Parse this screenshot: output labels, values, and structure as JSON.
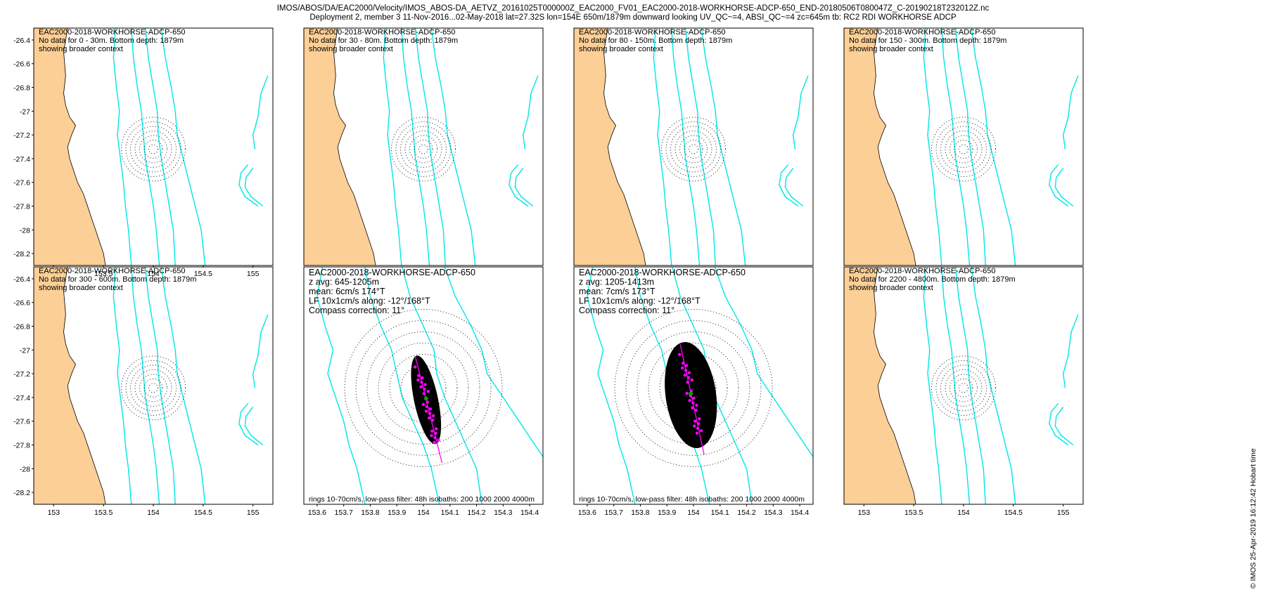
{
  "header": {
    "line1": "IMOS/ABOS/DA/EAC2000/Velocity/IMOS_ABOS-DA_AETVZ_20161025T000000Z_EAC2000_FV01_EAC2000-2018-WORKHORSE-ADCP-650_END-20180506T080047Z_C-20190218T232012Z.nc",
    "line2": "Deployment 2, member 3 11-Nov-2016...02-May-2018 lat=27.32S lon=154E 650m/1879m downward looking UV_QC~=4, ABSI_QC~=4 zc=645m tb: RC2 RDI WORKHORSE ADCP"
  },
  "footer": "© IMOS 25-Apr-2019 16:12:42 Hobart time",
  "colors": {
    "land": "#fccf96",
    "isobath": "#00e6e6",
    "scatter": "#000000",
    "lowpass": "#ff00ff",
    "circles": "#000000"
  },
  "chart_data": [
    {
      "type": "scatter",
      "panel": 1,
      "title": "EAC2000-2018-WORKHORSE-ADCP-650",
      "notes": [
        "No data for 0 - 30m. Bottom depth: 1879m",
        "showing broader context"
      ],
      "xlim": [
        152.8,
        155.2
      ],
      "ylim": [
        -28.3,
        -26.3
      ],
      "xticks": [
        "153",
        "153.5",
        "154",
        "154.5",
        "155"
      ],
      "yticks": [
        "-26.4",
        "-26.6",
        "-26.8",
        "-27",
        "-27.2",
        "-27.4",
        "-27.6",
        "-27.8",
        "-28",
        "-28.2"
      ],
      "has_data": false
    },
    {
      "type": "scatter",
      "panel": 2,
      "title": "EAC2000-2018-WORKHORSE-ADCP-650",
      "notes": [
        "No data for 30 - 80m. Bottom depth: 1879m",
        "showing broader context"
      ],
      "xlim": [
        152.8,
        155.2
      ],
      "ylim": [
        -28.3,
        -26.3
      ],
      "has_data": false
    },
    {
      "type": "scatter",
      "panel": 3,
      "title": "EAC2000-2018-WORKHORSE-ADCP-650",
      "notes": [
        "No data for 80 - 150m. Bottom depth: 1879m",
        "showing broader context"
      ],
      "xlim": [
        152.8,
        155.2
      ],
      "ylim": [
        -28.3,
        -26.3
      ],
      "has_data": false
    },
    {
      "type": "scatter",
      "panel": 4,
      "title": "EAC2000-2018-WORKHORSE-ADCP-650",
      "notes": [
        "No data for 150 - 300m. Bottom depth: 1879m",
        "showing broader context"
      ],
      "xlim": [
        152.8,
        155.2
      ],
      "ylim": [
        -28.3,
        -26.3
      ],
      "has_data": false
    },
    {
      "type": "scatter",
      "panel": 5,
      "title": "EAC2000-2018-WORKHORSE-ADCP-650",
      "notes": [
        "No data for 300 - 600m. Bottom depth: 1879m",
        "showing broader context"
      ],
      "xlim": [
        152.8,
        155.2
      ],
      "ylim": [
        -28.3,
        -26.3
      ],
      "xticks": [
        "153",
        "153.5",
        "154",
        "154.5",
        "155"
      ],
      "yticks": [
        "-26.4",
        "-26.6",
        "-26.8",
        "-27",
        "-27.2",
        "-27.4",
        "-27.6",
        "-27.8",
        "-28",
        "-28.2"
      ],
      "has_data": false
    },
    {
      "type": "scatter",
      "panel": 6,
      "title": "EAC2000-2018-WORKHORSE-ADCP-650",
      "notes": [
        "z avg: 645-1205m",
        "mean: 6cm/s 174°T",
        "LF 10x1cm/s along: -12°/168°T",
        "Compass correction: 11°"
      ],
      "footer": "rings 10-70cm/s, low-pass filter: 48h isobaths: 200 1000 2000 4000m",
      "xlim": [
        153.55,
        154.45
      ],
      "ylim": [
        -28.3,
        -26.3
      ],
      "xticks": [
        "153.6",
        "153.7",
        "153.8",
        "153.9",
        "154",
        "154.1",
        "154.2",
        "154.3",
        "154.4"
      ],
      "has_data": true,
      "cloud": {
        "center": [
          154.01,
          -27.42
        ],
        "half_width": 0.045,
        "half_height": 0.38,
        "tilt_deg": -12
      },
      "lowpass_axis": {
        "from": [
          153.97,
          -27.06
        ],
        "to": [
          154.07,
          -27.95
        ]
      }
    },
    {
      "type": "scatter",
      "panel": 7,
      "title": "EAC2000-2018-WORKHORSE-ADCP-650",
      "notes": [
        "z avg: 1205-1413m",
        "mean: 7cm/s 173°T",
        "LF 10x1cm/s along: -12°/168°T",
        "Compass correction: 11°"
      ],
      "footer": "rings 10-70cm/s, low-pass filter: 48h isobaths: 200 1000 2000 4000m",
      "xlim": [
        153.55,
        154.45
      ],
      "ylim": [
        -28.3,
        -26.3
      ],
      "xticks": [
        "153.6",
        "153.7",
        "153.8",
        "153.9",
        "154",
        "154.1",
        "154.2",
        "154.3",
        "154.4"
      ],
      "has_data": true,
      "cloud": {
        "center": [
          153.99,
          -27.38
        ],
        "half_width": 0.095,
        "half_height": 0.45,
        "tilt_deg": -8
      },
      "lowpass_axis": {
        "from": [
          153.95,
          -26.95
        ],
        "to": [
          154.04,
          -27.88
        ]
      }
    },
    {
      "type": "scatter",
      "panel": 8,
      "title": "EAC2000-2018-WORKHORSE-ADCP-650",
      "notes": [
        "No data for 2200 - 4800m. Bottom depth: 1879m",
        "showing broader context"
      ],
      "xlim": [
        152.8,
        155.2
      ],
      "ylim": [
        -28.3,
        -26.3
      ],
      "xticks": [
        "153",
        "153.5",
        "154",
        "154.5",
        "155"
      ],
      "has_data": false
    }
  ]
}
